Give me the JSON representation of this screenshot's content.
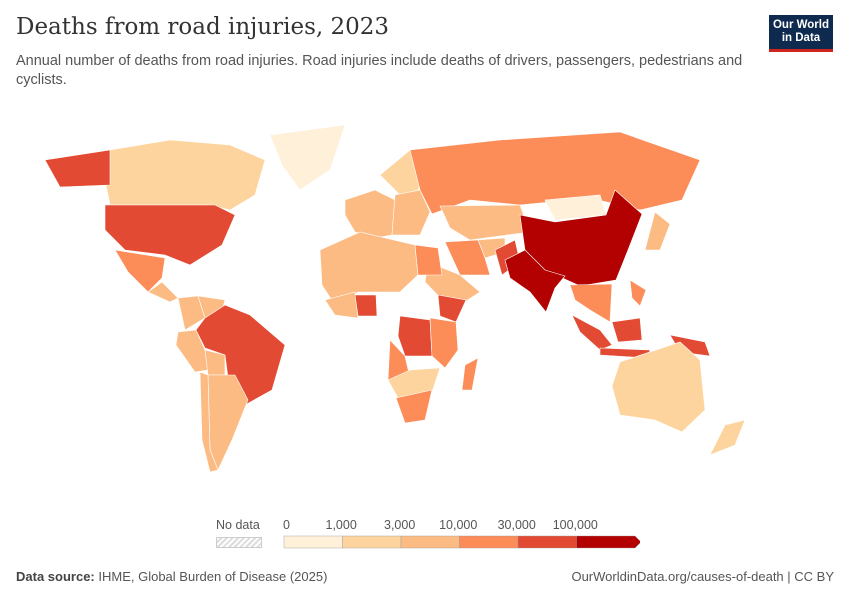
{
  "header": {
    "title": "Deaths from road injuries, 2023",
    "subtitle": "Annual number of deaths from road injuries. Road injuries include deaths of drivers, passengers, pedestrians and cyclists.",
    "logo": "Our World in Data"
  },
  "legend": {
    "no_data_label": "No data",
    "no_data_color": "#eeeeee",
    "ticks": [
      "0",
      "1,000",
      "3,000",
      "10,000",
      "30,000",
      "100,000"
    ],
    "colors": [
      "#fef0d9",
      "#fdd49e",
      "#fdbb84",
      "#fc8d59",
      "#e34a33",
      "#b30000"
    ]
  },
  "map": {
    "bins_by_country": {
      "Canada": 1,
      "Greenland": 0,
      "United States": 4,
      "Mexico": 3,
      "Central America": 2,
      "Colombia": 2,
      "Venezuela": 2,
      "Peru": 2,
      "Bolivia": 2,
      "Brazil": 4,
      "Argentina": 2,
      "Chile": 2,
      "Western Europe": 2,
      "Scandinavia": 1,
      "Eastern Europe": 2,
      "Russia": 3,
      "Kazakhstan": 2,
      "Mongolia": 0,
      "China": 5,
      "India": 5,
      "Pakistan": 4,
      "Iran": 3,
      "Afghanistan": 2,
      "Saudi Arabia": 2,
      "North Africa": 2,
      "Egypt": 3,
      "West Africa": 2,
      "Nigeria": 4,
      "Ethiopia": 4,
      "DR Congo": 4,
      "Angola": 3,
      "East Africa": 3,
      "Southern Africa": 1,
      "South Africa": 3,
      "Madagascar": 3,
      "Southeast Asia": 3,
      "Indonesia": 4,
      "Philippines": 3,
      "Japan": 2,
      "Australia": 1,
      "New Zealand": 1,
      "Papua New Guinea": 4
    }
  },
  "footer": {
    "source_label": "Data source:",
    "source": "IHME, Global Burden of Disease (2025)",
    "url": "OurWorldinData.org/causes-of-death | CC BY"
  }
}
